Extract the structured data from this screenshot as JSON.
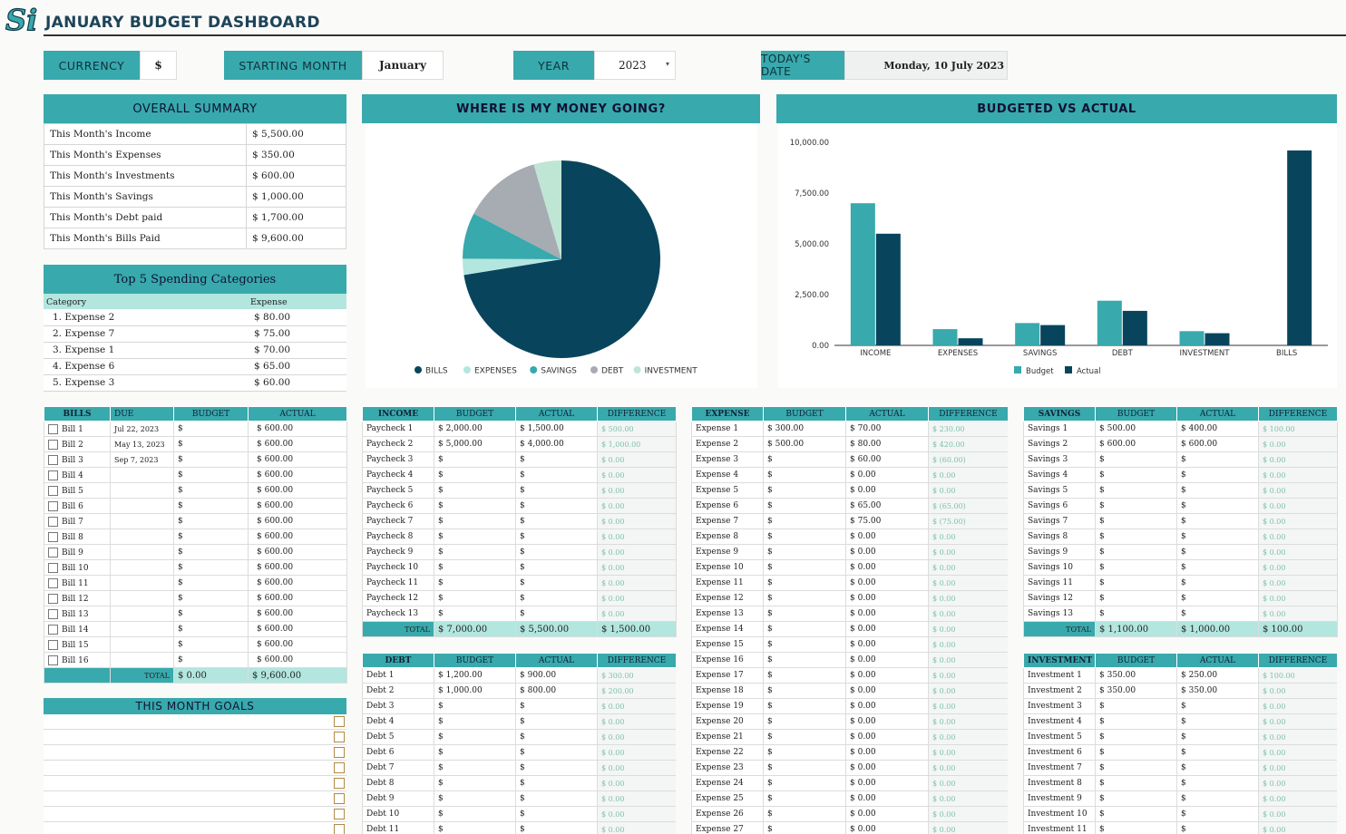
{
  "title": "JANUARY BUDGET DASHBOARD",
  "logo_text": "Si",
  "controls": {
    "currency_label": "CURRENCY",
    "currency_value": "$",
    "month_label": "STARTING MONTH",
    "month_value": "January",
    "year_label": "YEAR",
    "year_value": "2023",
    "date_label": "TODAY'S DATE",
    "date_value": "Monday, 10 July 2023"
  },
  "summary": {
    "title": "OVERALL SUMMARY",
    "rows": [
      {
        "label": "This Month's Income",
        "value": "$  5,500.00"
      },
      {
        "label": "This Month's Expenses",
        "value": "$  350.00"
      },
      {
        "label": "This Month's Investments",
        "value": "$  600.00"
      },
      {
        "label": "This Month's Savings",
        "value": "$  1,000.00"
      },
      {
        "label": "This Month's Debt paid",
        "value": "$  1,700.00"
      },
      {
        "label": "This Month's Bills Paid",
        "value": "$  9,600.00"
      }
    ]
  },
  "top5": {
    "title": "Top 5 Spending Categories",
    "col_category": "Category",
    "col_expense": "Expense",
    "rows": [
      {
        "label": "1.  Expense 2",
        "value": "$  80.00"
      },
      {
        "label": "2.  Expense 7",
        "value": "$  75.00"
      },
      {
        "label": "3.  Expense 1",
        "value": "$  70.00"
      },
      {
        "label": "4.  Expense 6",
        "value": "$  65.00"
      },
      {
        "label": "5.  Expense 3",
        "value": "$  60.00"
      }
    ]
  },
  "colors": {
    "teal": "#38a9ad",
    "navy": "#08455d",
    "light_teal": "#b2e6df",
    "gray": "#a7abb2",
    "mint": "#bfe6d5"
  },
  "chart_data": [
    {
      "type": "pie",
      "title": "WHERE IS MY MONEY GOING?",
      "categories": [
        "BILLS",
        "EXPENSES",
        "SAVINGS",
        "DEBT",
        "INVESTMENT"
      ],
      "values": [
        9600,
        350,
        1000,
        1700,
        600
      ],
      "colors": [
        "#08455d",
        "#b2e6df",
        "#38a9ad",
        "#a7abb2",
        "#bfe6d5"
      ],
      "legend": "bottom"
    },
    {
      "type": "bar",
      "title": "BUDGETED VS ACTUAL",
      "categories": [
        "INCOME",
        "EXPENSES",
        "SAVINGS",
        "DEBT",
        "INVESTMENT",
        "BILLS"
      ],
      "series": [
        {
          "name": "Budget",
          "values": [
            7000,
            800,
            1100,
            2200,
            700,
            0
          ],
          "color": "#38a9ad"
        },
        {
          "name": "Actual",
          "values": [
            5500,
            350,
            1000,
            1700,
            600,
            9600
          ],
          "color": "#08455d"
        }
      ],
      "yticks": [
        "0.00",
        "2,500.00",
        "5,000.00",
        "7,500.00",
        "10,000.00"
      ],
      "ylim": [
        0,
        10000
      ],
      "grid": false,
      "legend": "bottom"
    }
  ],
  "bills": {
    "headers": [
      "BILLS",
      "DUE",
      "BUDGET",
      "ACTUAL"
    ],
    "rows": [
      [
        "Bill 1",
        "Jul 22, 2023",
        "$",
        "$  600.00"
      ],
      [
        "Bill 2",
        "May 13, 2023",
        "$",
        "$  600.00"
      ],
      [
        "Bill 3",
        "Sep 7, 2023",
        "$",
        "$  600.00"
      ],
      [
        "Bill 4",
        "",
        "$",
        "$  600.00"
      ],
      [
        "Bill 5",
        "",
        "$",
        "$  600.00"
      ],
      [
        "Bill 6",
        "",
        "$",
        "$  600.00"
      ],
      [
        "Bill 7",
        "",
        "$",
        "$  600.00"
      ],
      [
        "Bill 8",
        "",
        "$",
        "$  600.00"
      ],
      [
        "Bill 9",
        "",
        "$",
        "$  600.00"
      ],
      [
        "Bill 10",
        "",
        "$",
        "$  600.00"
      ],
      [
        "Bill 11",
        "",
        "$",
        "$  600.00"
      ],
      [
        "Bill 12",
        "",
        "$",
        "$  600.00"
      ],
      [
        "Bill 13",
        "",
        "$",
        "$  600.00"
      ],
      [
        "Bill 14",
        "",
        "$",
        "$  600.00"
      ],
      [
        "Bill 15",
        "",
        "$",
        "$  600.00"
      ],
      [
        "Bill 16",
        "",
        "$",
        "$  600.00"
      ]
    ],
    "total_label": "TOTAL",
    "total_budget": "$  0.00",
    "total_actual": "$  9,600.00"
  },
  "goals": {
    "title": "THIS MONTH GOALS",
    "count": 8
  },
  "income": {
    "headers": [
      "INCOME",
      "BUDGET",
      "ACTUAL",
      "DIFFERENCE"
    ],
    "rows": [
      [
        "Paycheck 1",
        "$  2,000.00",
        "$  1,500.00",
        "$  500.00"
      ],
      [
        "Paycheck 2",
        "$  5,000.00",
        "$  4,000.00",
        "$  1,000.00"
      ],
      [
        "Paycheck 3",
        "$",
        "$",
        "$  0.00"
      ],
      [
        "Paycheck 4",
        "$",
        "$",
        "$  0.00"
      ],
      [
        "Paycheck 5",
        "$",
        "$",
        "$  0.00"
      ],
      [
        "Paycheck 6",
        "$",
        "$",
        "$  0.00"
      ],
      [
        "Paycheck 7",
        "$",
        "$",
        "$  0.00"
      ],
      [
        "Paycheck 8",
        "$",
        "$",
        "$  0.00"
      ],
      [
        "Paycheck 9",
        "$",
        "$",
        "$  0.00"
      ],
      [
        "Paycheck 10",
        "$",
        "$",
        "$  0.00"
      ],
      [
        "Paycheck 11",
        "$",
        "$",
        "$  0.00"
      ],
      [
        "Paycheck 12",
        "$",
        "$",
        "$  0.00"
      ],
      [
        "Paycheck 13",
        "$",
        "$",
        "$  0.00"
      ]
    ],
    "total": [
      "TOTAL",
      "$  7,000.00",
      "$  5,500.00",
      "$  1,500.00"
    ]
  },
  "debt": {
    "headers": [
      "DEBT",
      "BUDGET",
      "ACTUAL",
      "DIFFERENCE"
    ],
    "rows": [
      [
        "Debt 1",
        "$  1,200.00",
        "$  900.00",
        "$  300.00"
      ],
      [
        "Debt 2",
        "$  1,000.00",
        "$  800.00",
        "$  200.00"
      ],
      [
        "Debt 3",
        "$",
        "$",
        "$  0.00"
      ],
      [
        "Debt 4",
        "$",
        "$",
        "$  0.00"
      ],
      [
        "Debt 5",
        "$",
        "$",
        "$  0.00"
      ],
      [
        "Debt 6",
        "$",
        "$",
        "$  0.00"
      ],
      [
        "Debt 7",
        "$",
        "$",
        "$  0.00"
      ],
      [
        "Debt 8",
        "$",
        "$",
        "$  0.00"
      ],
      [
        "Debt 9",
        "$",
        "$",
        "$  0.00"
      ],
      [
        "Debt 10",
        "$",
        "$",
        "$  0.00"
      ],
      [
        "Debt 11",
        "$",
        "$",
        "$  0.00"
      ]
    ]
  },
  "expense": {
    "headers": [
      "EXPENSE",
      "BUDGET",
      "ACTUAL",
      "DIFFERENCE"
    ],
    "rows": [
      [
        "Expense 1",
        "$  300.00",
        "$  70.00",
        "$  230.00"
      ],
      [
        "Expense 2",
        "$  500.00",
        "$  80.00",
        "$  420.00"
      ],
      [
        "Expense 3",
        "$",
        "$  60.00",
        "$  (60.00)"
      ],
      [
        "Expense 4",
        "$",
        "$  0.00",
        "$  0.00"
      ],
      [
        "Expense 5",
        "$",
        "$  0.00",
        "$  0.00"
      ],
      [
        "Expense 6",
        "$",
        "$  65.00",
        "$  (65.00)"
      ],
      [
        "Expense 7",
        "$",
        "$  75.00",
        "$  (75.00)"
      ],
      [
        "Expense 8",
        "$",
        "$  0.00",
        "$  0.00"
      ],
      [
        "Expense 9",
        "$",
        "$  0.00",
        "$  0.00"
      ],
      [
        "Expense 10",
        "$",
        "$  0.00",
        "$  0.00"
      ],
      [
        "Expense 11",
        "$",
        "$  0.00",
        "$  0.00"
      ],
      [
        "Expense 12",
        "$",
        "$  0.00",
        "$  0.00"
      ],
      [
        "Expense 13",
        "$",
        "$  0.00",
        "$  0.00"
      ],
      [
        "Expense 14",
        "$",
        "$  0.00",
        "$  0.00"
      ],
      [
        "Expense 15",
        "$",
        "$  0.00",
        "$  0.00"
      ],
      [
        "Expense 16",
        "$",
        "$  0.00",
        "$  0.00"
      ],
      [
        "Expense 17",
        "$",
        "$  0.00",
        "$  0.00"
      ],
      [
        "Expense 18",
        "$",
        "$  0.00",
        "$  0.00"
      ],
      [
        "Expense 19",
        "$",
        "$  0.00",
        "$  0.00"
      ],
      [
        "Expense 20",
        "$",
        "$  0.00",
        "$  0.00"
      ],
      [
        "Expense 21",
        "$",
        "$  0.00",
        "$  0.00"
      ],
      [
        "Expense 22",
        "$",
        "$  0.00",
        "$  0.00"
      ],
      [
        "Expense 23",
        "$",
        "$  0.00",
        "$  0.00"
      ],
      [
        "Expense 24",
        "$",
        "$  0.00",
        "$  0.00"
      ],
      [
        "Expense 25",
        "$",
        "$  0.00",
        "$  0.00"
      ],
      [
        "Expense 26",
        "$",
        "$  0.00",
        "$  0.00"
      ],
      [
        "Expense 27",
        "$",
        "$  0.00",
        "$  0.00"
      ]
    ]
  },
  "savings": {
    "headers": [
      "SAVINGS",
      "BUDGET",
      "ACTUAL",
      "DIFFERENCE"
    ],
    "rows": [
      [
        "Savings 1",
        "$  500.00",
        "$  400.00",
        "$  100.00"
      ],
      [
        "Savings 2",
        "$  600.00",
        "$  600.00",
        "$  0.00"
      ],
      [
        "Savings 3",
        "$",
        "$",
        "$  0.00"
      ],
      [
        "Savings 4",
        "$",
        "$",
        "$  0.00"
      ],
      [
        "Savings 5",
        "$",
        "$",
        "$  0.00"
      ],
      [
        "Savings 6",
        "$",
        "$",
        "$  0.00"
      ],
      [
        "Savings 7",
        "$",
        "$",
        "$  0.00"
      ],
      [
        "Savings 8",
        "$",
        "$",
        "$  0.00"
      ],
      [
        "Savings 9",
        "$",
        "$",
        "$  0.00"
      ],
      [
        "Savings 10",
        "$",
        "$",
        "$  0.00"
      ],
      [
        "Savings 11",
        "$",
        "$",
        "$  0.00"
      ],
      [
        "Savings 12",
        "$",
        "$",
        "$  0.00"
      ],
      [
        "Savings 13",
        "$",
        "$",
        "$  0.00"
      ]
    ],
    "total": [
      "TOTAL",
      "$  1,100.00",
      "$  1,000.00",
      "$  100.00"
    ]
  },
  "investment": {
    "headers": [
      "INVESTMENT",
      "BUDGET",
      "ACTUAL",
      "DIFFERENCE"
    ],
    "rows": [
      [
        "Investment 1",
        "$  350.00",
        "$  250.00",
        "$  100.00"
      ],
      [
        "Investment 2",
        "$  350.00",
        "$  350.00",
        "$  0.00"
      ],
      [
        "Investment 3",
        "$",
        "$",
        "$  0.00"
      ],
      [
        "Investment 4",
        "$",
        "$",
        "$  0.00"
      ],
      [
        "Investment 5",
        "$",
        "$",
        "$  0.00"
      ],
      [
        "Investment 6",
        "$",
        "$",
        "$  0.00"
      ],
      [
        "Investment 7",
        "$",
        "$",
        "$  0.00"
      ],
      [
        "Investment 8",
        "$",
        "$",
        "$  0.00"
      ],
      [
        "Investment 9",
        "$",
        "$",
        "$  0.00"
      ],
      [
        "Investment 10",
        "$",
        "$",
        "$  0.00"
      ],
      [
        "Investment 11",
        "$",
        "$",
        "$  0.00"
      ]
    ]
  }
}
